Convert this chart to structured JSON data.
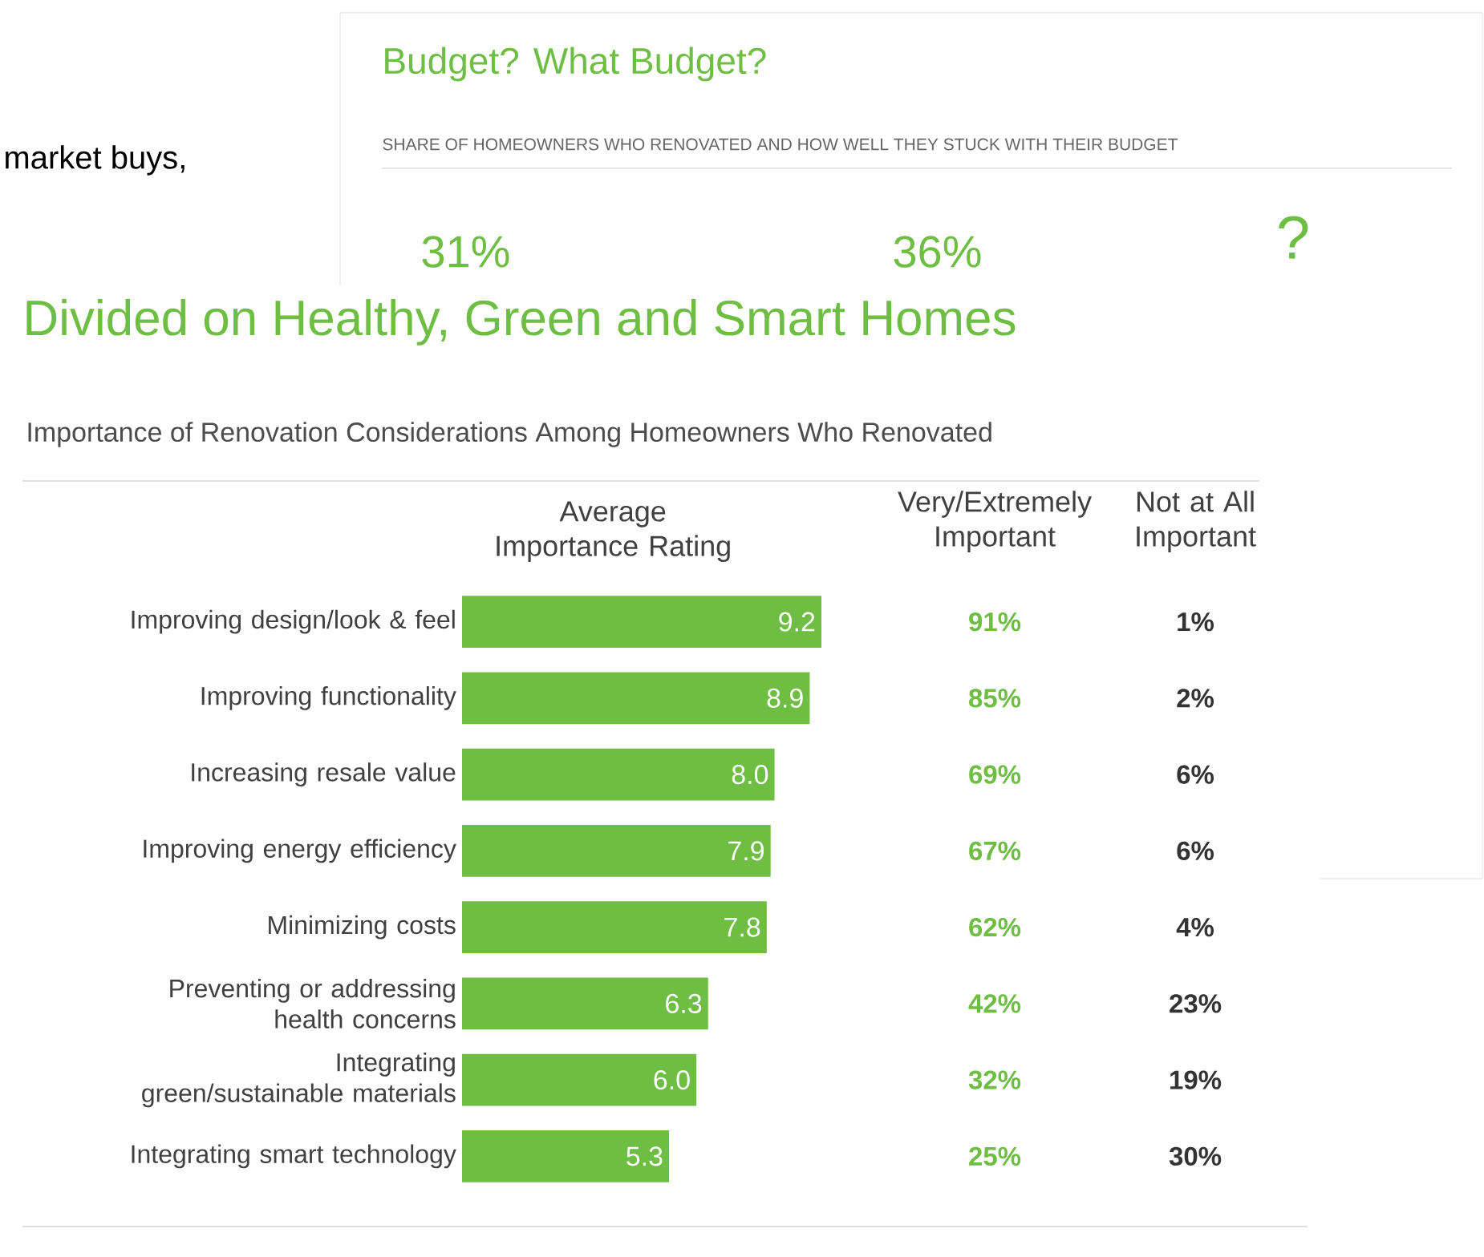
{
  "chart_data": [
    {
      "type": "bar",
      "orientation": "horizontal",
      "title": "Divided on Healthy, Green and Smart Homes",
      "subtitle": "Importance of Renovation Considerations Among Homeowners Who Renovated",
      "xlabel": "Average Importance Rating",
      "categories": [
        "Improving design/look & feel",
        "Improving functionality",
        "Increasing resale value",
        "Improving energy efficiency",
        "Minimizing costs",
        "Preventing or addressing health concerns",
        "Integrating green/sustainable materials",
        "Integrating smart technology"
      ],
      "values": [
        9.2,
        8.9,
        8.0,
        7.9,
        7.8,
        6.3,
        6.0,
        5.3
      ],
      "value_labels": [
        "9.2",
        "8.9",
        "8.0",
        "7.9",
        "7.8",
        "6.3",
        "6.0",
        "5.3"
      ],
      "color": "#6ebe44",
      "annotations": [
        "market buys,",
        "Budget? What Budget?",
        "SHARE OF HOMEOWNERS WHO RENOVATED AND HOW WELL THEY STUCK WITH THEIR BUDGET",
        "31%",
        "36%",
        "?"
      ]
    },
    {
      "type": "other",
      "title": "Very/Extremely Important",
      "categories": [
        null,
        null,
        null,
        null,
        null,
        null,
        null,
        null
      ],
      "values": [
        91,
        85,
        69,
        67,
        62,
        42,
        32,
        25
      ],
      "value_labels": [
        "91%",
        "85%",
        "69%",
        "67%",
        "62%",
        "42%",
        "32%",
        "25%"
      ],
      "color": "#6ebe44"
    },
    {
      "type": "other",
      "title": "Not at All Important",
      "categories": [
        null,
        null,
        null,
        null,
        null,
        null,
        null,
        null
      ],
      "values": [
        1,
        2,
        6,
        6,
        4,
        23,
        19,
        30
      ],
      "value_labels": [
        "1%",
        "2%",
        "6%",
        "6%",
        "4%",
        "23%",
        "19%",
        "30%"
      ],
      "color": "#333333"
    }
  ]
}
